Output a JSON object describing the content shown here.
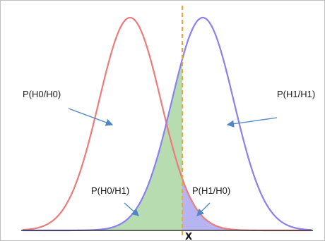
{
  "labels": {
    "p_h0_h0": "P(H0/H0)",
    "p_h1_h1": "P(H1/H1)",
    "p_h0_h1": "P(H0/H1)",
    "p_h1_h0": "P(H1/H0)",
    "threshold": "X"
  },
  "colors": {
    "h0_curve": "#ee7b7b",
    "h1_curve": "#8a80ee",
    "green_region": "#a9d6a1",
    "blue_region": "#aaa7f0",
    "threshold_line": "#f2a23a",
    "arrow": "#4f86c6",
    "axis": "#333333"
  }
}
